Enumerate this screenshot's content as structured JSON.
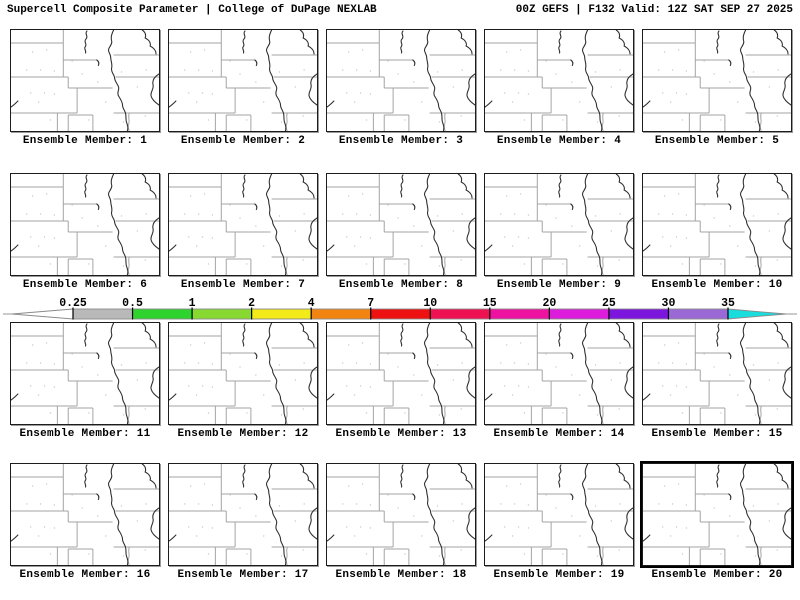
{
  "header": {
    "title_left": "Supercell Composite Parameter | College of DuPage NEXLAB",
    "title_right": "00Z GEFS | F132 Valid: 12Z SAT SEP 27 2025"
  },
  "panels": [
    {
      "label": "Ensemble Member: 1"
    },
    {
      "label": "Ensemble Member: 2"
    },
    {
      "label": "Ensemble Member: 3"
    },
    {
      "label": "Ensemble Member: 4"
    },
    {
      "label": "Ensemble Member: 5"
    },
    {
      "label": "Ensemble Member: 6"
    },
    {
      "label": "Ensemble Member: 7"
    },
    {
      "label": "Ensemble Member: 8"
    },
    {
      "label": "Ensemble Member: 9"
    },
    {
      "label": "Ensemble Member: 10"
    },
    {
      "label": "Ensemble Member: 11"
    },
    {
      "label": "Ensemble Member: 12"
    },
    {
      "label": "Ensemble Member: 13"
    },
    {
      "label": "Ensemble Member: 14"
    },
    {
      "label": "Ensemble Member: 15"
    },
    {
      "label": "Ensemble Member: 16"
    },
    {
      "label": "Ensemble Member: 17"
    },
    {
      "label": "Ensemble Member: 18"
    },
    {
      "label": "Ensemble Member: 19"
    },
    {
      "label": "Ensemble Member: 20",
      "highlighted": true
    }
  ],
  "colorbar": {
    "tick_labels": [
      "0.25",
      "0.5",
      "1",
      "2",
      "4",
      "7",
      "10",
      "15",
      "20",
      "25",
      "30",
      "35"
    ],
    "segment_colors": [
      "#b9b9b9",
      "#2ed32e",
      "#87d931",
      "#f2ea19",
      "#f28511",
      "#ee1111",
      "#ee1253",
      "#ee12a0",
      "#dc1ddc",
      "#7c16dd",
      "#9b69d5"
    ],
    "below_min_color": "#ffffff",
    "above_max_color": "#19dcdc",
    "outline_color": "#8a8a8a"
  }
}
